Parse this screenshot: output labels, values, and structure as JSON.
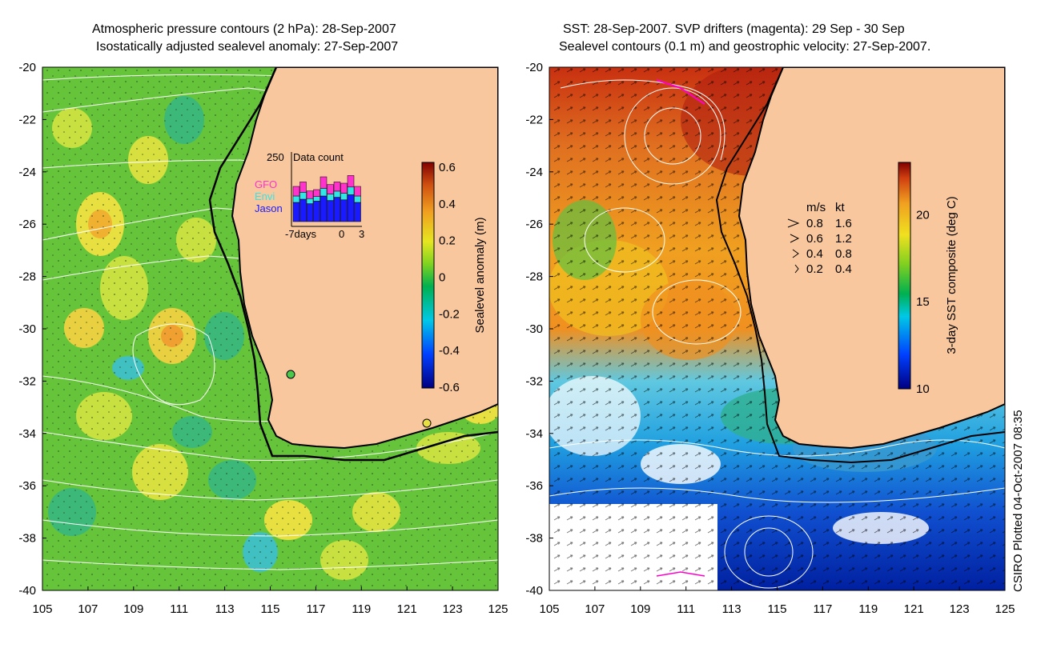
{
  "left_map": {
    "title_line1": "Atmospheric pressure contours (2 hPa): 28-Sep-2007",
    "title_line2": "Isostatically adjusted sealevel anomaly: 27-Sep-2007",
    "lat_ticks": [
      "-20",
      "-22",
      "-24",
      "-26",
      "-28",
      "-30",
      "-32",
      "-34",
      "-36",
      "-38",
      "-40"
    ],
    "lon_ticks": [
      "105",
      "107",
      "109",
      "111",
      "113",
      "115",
      "117",
      "119",
      "121",
      "123",
      "125"
    ],
    "colorbar": {
      "label": "Sealevel anomaly (m)",
      "ticks": [
        "0.6",
        "0.4",
        "0.2",
        "0",
        "-0.2",
        "-0.4",
        "-0.6"
      ],
      "range": [
        -0.6,
        0.6
      ]
    },
    "inset": {
      "title": "Data count",
      "ymax_label": "250",
      "legend": [
        {
          "name": "GFO",
          "color": "#ff33cc"
        },
        {
          "name": "Envi",
          "color": "#33e6e6"
        },
        {
          "name": "Jason",
          "color": "#1a1aff"
        }
      ],
      "xlabel_left": "-7days",
      "xlabel_mid": "0",
      "xlabel_right": "3",
      "bars_fraction": [
        0.55,
        0.62,
        0.48,
        0.5,
        0.7,
        0.58,
        0.62,
        0.6,
        0.72,
        0.55
      ],
      "jason_fraction": [
        0.3,
        0.35,
        0.28,
        0.32,
        0.4,
        0.33,
        0.38,
        0.34,
        0.42,
        0.3
      ]
    }
  },
  "right_map": {
    "title_line1": "SST: 28-Sep-2007. SVP drifters (magenta): 29 Sep - 30 Sep",
    "title_line2": "Sealevel contours (0.1 m) and geostrophic velocity: 27-Sep-2007.",
    "lat_ticks": [
      "-20",
      "-22",
      "-24",
      "-26",
      "-28",
      "-30",
      "-32",
      "-34",
      "-36",
      "-38",
      "-40"
    ],
    "lon_ticks": [
      "105",
      "107",
      "109",
      "111",
      "113",
      "115",
      "117",
      "119",
      "121",
      "123",
      "125"
    ],
    "colorbar": {
      "label": "3-day SST composite (deg C)",
      "ticks": [
        "20",
        "15",
        "10"
      ],
      "range": [
        10,
        23
      ]
    },
    "velocity_key": {
      "header_ms": "m/s",
      "header_kt": "kt",
      "rows": [
        {
          "ms": "0.8",
          "kt": "1.6"
        },
        {
          "ms": "0.6",
          "kt": "1.2"
        },
        {
          "ms": "0.4",
          "kt": "0.8"
        },
        {
          "ms": "0.2",
          "kt": "0.4"
        }
      ]
    }
  },
  "credit": "CSIRO Plotted 04-Oct-2007 08:35",
  "colors": {
    "land": "#f9c79d",
    "coast": "#000000",
    "contour": "#ffffff"
  }
}
